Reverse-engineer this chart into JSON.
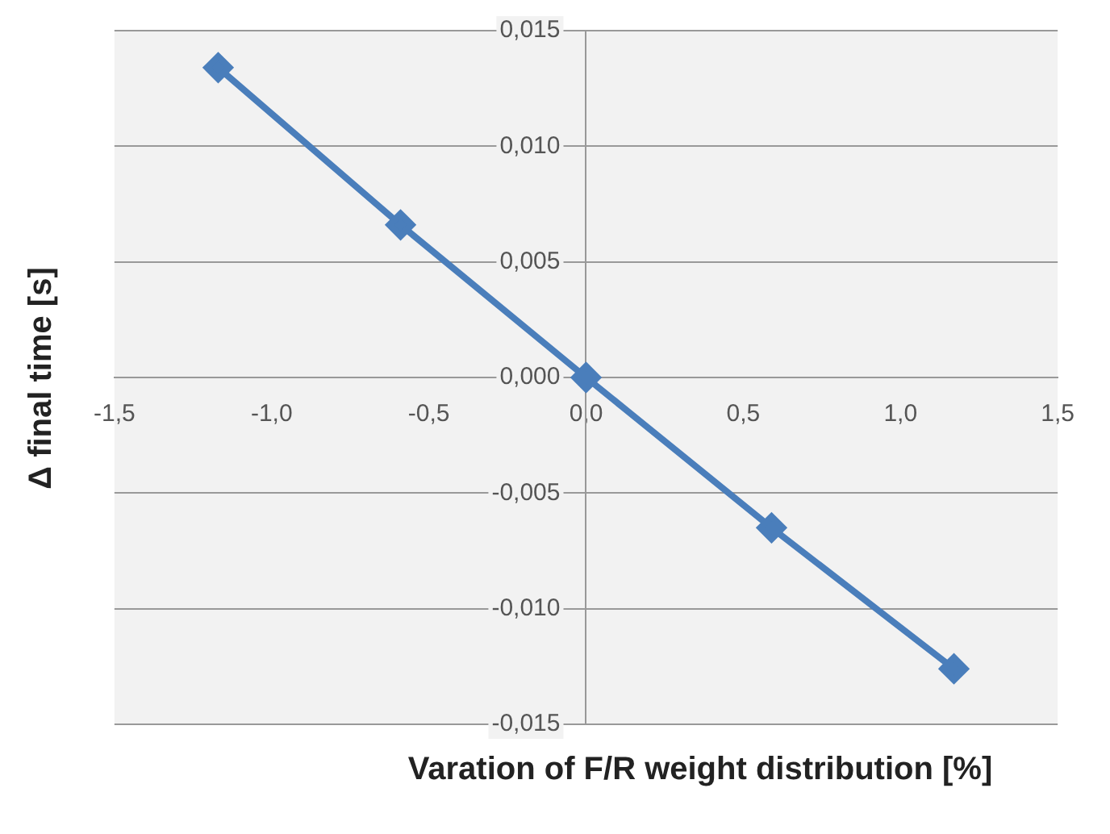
{
  "chart_data": {
    "type": "line",
    "xlabel": "Varation of F/R weight distribution [%]",
    "ylabel": "Δ final time [s]",
    "x": [
      -1.17,
      -0.59,
      0,
      0.59,
      1.17
    ],
    "series": [
      {
        "color": "#4a7ebb",
        "values": [
          0.0134,
          0.0066,
          0,
          -0.0065,
          -0.0126
        ]
      }
    ],
    "xlim": [
      -1.5,
      1.5
    ],
    "ylim": [
      -0.015,
      0.015
    ],
    "xticks": [
      {
        "value": -1.5,
        "label": "-1,5"
      },
      {
        "value": -1,
        "label": "-1,0"
      },
      {
        "value": -0.5,
        "label": "-0,5"
      },
      {
        "value": 0,
        "label": "0,0"
      },
      {
        "value": 0.5,
        "label": "0,5"
      },
      {
        "value": 1,
        "label": "1,0"
      },
      {
        "value": 1.5,
        "label": "1,5"
      }
    ],
    "yticks": [
      {
        "value": -0.015,
        "label": "-0,015"
      },
      {
        "value": -0.01,
        "label": "-0,010"
      },
      {
        "value": -0.005,
        "label": "-0,005"
      },
      {
        "value": 0,
        "label": "0,000"
      },
      {
        "value": 0.005,
        "label": "0,005"
      },
      {
        "value": 0.01,
        "label": "0,010"
      },
      {
        "value": 0.015,
        "label": "0,015"
      }
    ],
    "grid": "y",
    "marker": "diamond",
    "line_style": "solid",
    "legend": false
  }
}
